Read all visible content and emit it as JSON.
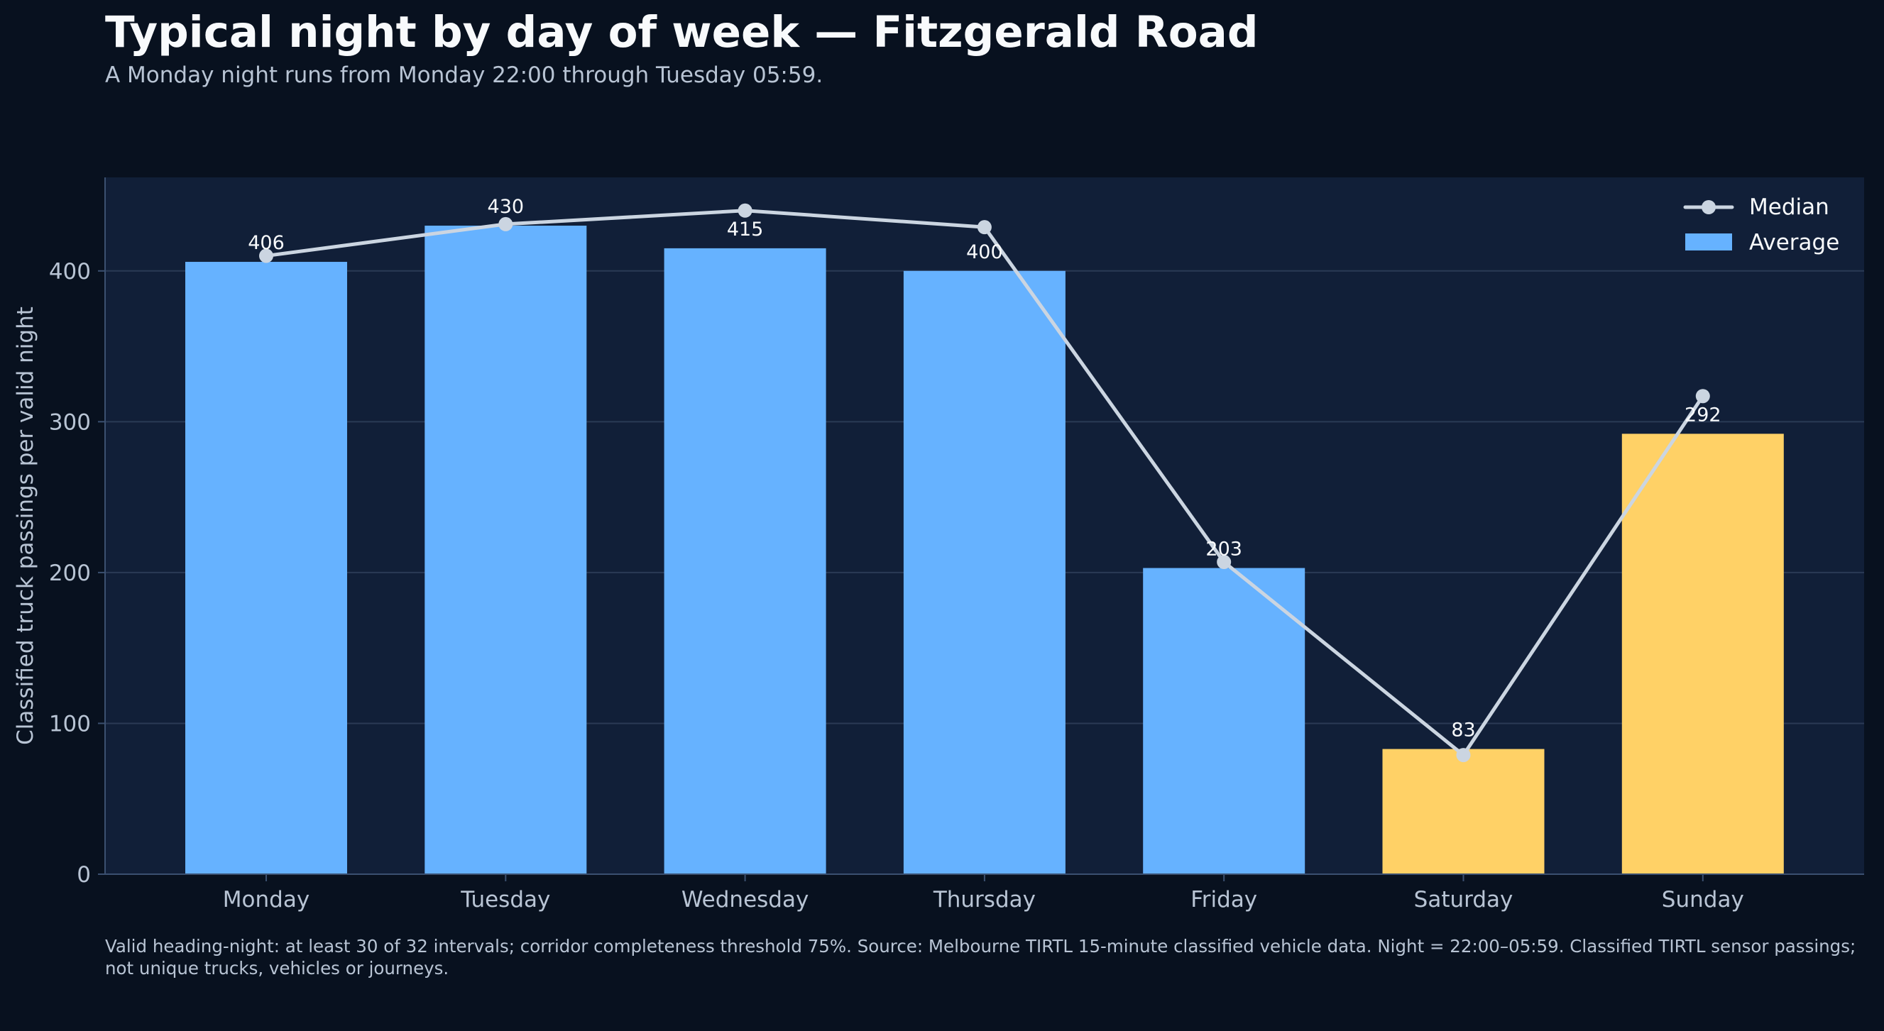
{
  "title": "Typical night by day of week — Fitzgerald Road",
  "subtitle": "A Monday night runs from Monday 22:00 through Tuesday 05:59.",
  "footnote": "Valid heading-night: at least 30 of 32 intervals; corridor completeness threshold 75%. Source: Melbourne TIRTL 15-minute classified vehicle data. Night = 22:00–05:59. Classified TIRTL sensor passings; not unique trucks, vehicles or journeys.",
  "colors": {
    "page_background": "#08111f",
    "plot_background": "#111f38",
    "weekday_bar": "#66b2ff",
    "weekend_bar": "#ffd166",
    "median_line": "#cbd5e1",
    "grid": "#2a3a55",
    "text_primary": "#f8fafc",
    "text_secondary": "#b8c4d4"
  },
  "chart_data": {
    "type": "bar",
    "categories": [
      "Monday",
      "Tuesday",
      "Wednesday",
      "Thursday",
      "Friday",
      "Saturday",
      "Sunday"
    ],
    "series": [
      {
        "name": "Average",
        "type": "bar",
        "values": [
          406,
          430,
          415,
          400,
          203,
          83,
          292
        ],
        "colors": [
          "#66b2ff",
          "#66b2ff",
          "#66b2ff",
          "#66b2ff",
          "#66b2ff",
          "#ffd166",
          "#ffd166"
        ]
      },
      {
        "name": "Median",
        "type": "line",
        "values": [
          410,
          431,
          440,
          429,
          207,
          79,
          317
        ]
      }
    ],
    "data_labels": [
      "406",
      "430",
      "415",
      "400",
      "203",
      "83",
      "292"
    ],
    "xlabel": "",
    "ylabel": "Classified truck passings per valid night",
    "ylim": [
      0,
      462
    ],
    "yticks": [
      0,
      100,
      200,
      300,
      400
    ],
    "grid": true,
    "legend": {
      "position": "top-right",
      "entries": [
        {
          "label": "Median",
          "marker": "line-dot"
        },
        {
          "label": "Average",
          "marker": "bar"
        }
      ]
    }
  }
}
